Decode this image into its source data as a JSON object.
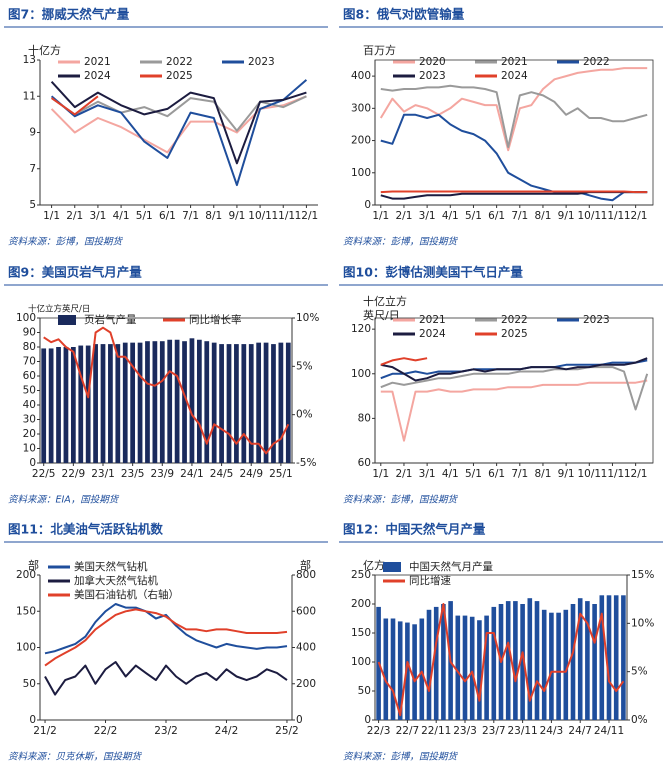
{
  "chart_data": [
    {
      "type": "line",
      "title": "图7：挪威天然气产量",
      "source": "资料来源：彭博，国投期货",
      "ylabel": "十亿方",
      "categories": [
        "1/1",
        "2/1",
        "3/1",
        "4/1",
        "5/1",
        "6/1",
        "7/1",
        "8/1",
        "9/1",
        "10/1",
        "11/1",
        "12/1"
      ],
      "ylim": [
        5,
        13
      ],
      "yticks": [
        5,
        7,
        9,
        11,
        13
      ],
      "legend_cols": 3,
      "frame": false,
      "series": [
        {
          "name": "2021",
          "color": "#f4a6a0",
          "values": [
            10.3,
            9.0,
            9.8,
            9.3,
            8.6,
            7.9,
            9.6,
            9.6,
            9.0,
            10.3,
            10.5,
            11.0
          ]
        },
        {
          "name": "2022",
          "color": "#9a9a9a",
          "values": [
            10.9,
            10.0,
            10.7,
            10.1,
            10.4,
            9.9,
            10.9,
            10.7,
            9.1,
            10.7,
            10.4,
            11.0
          ]
        },
        {
          "name": "2023",
          "color": "#1f4e9c",
          "values": [
            11.0,
            9.9,
            10.5,
            10.1,
            8.5,
            7.6,
            10.1,
            9.8,
            6.1,
            10.3,
            10.8,
            11.9
          ]
        },
        {
          "name": "2024",
          "color": "#1c1c40",
          "values": [
            11.8,
            10.4,
            11.2,
            10.5,
            10.0,
            10.3,
            11.2,
            10.9,
            7.3,
            10.7,
            10.8,
            11.2
          ]
        },
        {
          "name": "2025",
          "color": "#e0402a",
          "values": [
            10.9,
            10.0,
            11.0,
            null,
            null,
            null,
            null,
            null,
            null,
            null,
            null,
            null
          ]
        }
      ]
    },
    {
      "type": "line",
      "title": "图8：俄气对欧管输量",
      "source": "资料来源：彭博，国投期货",
      "ylabel": "百万方",
      "categories": [
        "1/1",
        null,
        "2/1",
        null,
        "3/1",
        null,
        "4/1",
        null,
        "5/1",
        null,
        "6/1",
        null,
        "7/1",
        null,
        "8/1",
        null,
        "9/1",
        null,
        "10/1",
        null,
        "11/1",
        null,
        "12/1",
        null
      ],
      "ylim": [
        0,
        450
      ],
      "yticks": [
        0,
        100,
        200,
        300,
        400
      ],
      "legend_cols": 3,
      "frame": true,
      "series": [
        {
          "name": "2020",
          "color": "#f4a6a0",
          "values": [
            270,
            330,
            290,
            310,
            300,
            280,
            300,
            330,
            320,
            310,
            310,
            170,
            300,
            310,
            360,
            390,
            400,
            410,
            415,
            420,
            420,
            425,
            425,
            425
          ]
        },
        {
          "name": "2021",
          "color": "#9a9a9a",
          "values": [
            360,
            355,
            360,
            360,
            365,
            365,
            370,
            365,
            365,
            360,
            350,
            180,
            340,
            350,
            340,
            320,
            280,
            300,
            270,
            270,
            260,
            260,
            270,
            280
          ]
        },
        {
          "name": "2022",
          "color": "#1f4e9c",
          "values": [
            200,
            190,
            280,
            280,
            270,
            280,
            250,
            230,
            220,
            200,
            160,
            100,
            80,
            60,
            50,
            40,
            40,
            40,
            30,
            20,
            15,
            40,
            40,
            40
          ]
        },
        {
          "name": "2023",
          "color": "#1c1c40",
          "values": [
            30,
            20,
            20,
            25,
            30,
            30,
            30,
            35,
            35,
            35,
            35,
            35,
            35,
            35,
            35,
            35,
            35,
            35,
            40,
            40,
            40,
            40,
            40,
            40
          ]
        },
        {
          "name": "2024",
          "color": "#e0402a",
          "values": [
            40,
            42,
            42,
            42,
            42,
            42,
            42,
            42,
            42,
            42,
            42,
            42,
            42,
            42,
            42,
            42,
            42,
            42,
            42,
            42,
            42,
            42,
            40,
            40
          ]
        }
      ]
    },
    {
      "type": "combo",
      "title": "图9：美国页岩气月产量",
      "source": "资料来源：EIA，国投期货",
      "ylabel": "十亿立方英尺/日",
      "categories": [
        "22/5",
        null,
        null,
        null,
        "22/9",
        null,
        null,
        null,
        "23/1",
        null,
        null,
        null,
        "23/5",
        null,
        null,
        null,
        "23/9",
        null,
        null,
        null,
        "24/1",
        null,
        null,
        null,
        "24/5",
        null,
        null,
        null,
        "24/9",
        null,
        null,
        null,
        "25/1",
        null
      ],
      "ylim": [
        0,
        100
      ],
      "yticks": [
        0,
        10,
        20,
        30,
        40,
        50,
        60,
        70,
        80,
        90,
        100
      ],
      "y2lim": [
        -5,
        10
      ],
      "y2ticks": [
        {
          "value": -5,
          "label": "-5%"
        },
        {
          "value": 0,
          "label": "0%"
        },
        {
          "value": 5,
          "label": "5%"
        },
        {
          "value": 10,
          "label": "10%"
        }
      ],
      "legend_cols": 2,
      "frame": true,
      "series": [
        {
          "name": "页岩气产量",
          "mark": "bar",
          "color": "#1a2a5c",
          "values": [
            79,
            79,
            80,
            80,
            80,
            81,
            81,
            82,
            82,
            82,
            82,
            83,
            83,
            83,
            84,
            84,
            84,
            85,
            85,
            84,
            86,
            85,
            84,
            83,
            82,
            82,
            82,
            82,
            82,
            83,
            83,
            82,
            83,
            83
          ]
        },
        {
          "name": "同比增长率",
          "mark": "line",
          "axis": "y2",
          "color": "#e0402a",
          "values": [
            8,
            7.5,
            7.8,
            7,
            6.5,
            4,
            1.8,
            8.5,
            9,
            8.5,
            6,
            6,
            5,
            4,
            3.2,
            3,
            3.5,
            4.5,
            4,
            2,
            0,
            -1,
            -3,
            -1,
            -1.5,
            -2,
            -3,
            -2,
            -3,
            -3,
            -4,
            -3,
            -2.5,
            -1
          ]
        }
      ]
    },
    {
      "type": "line",
      "title": "图10：彭博估测美国干气日产量",
      "source": "资料来源：彭博，国投期货",
      "ylabel": [
        "十亿立方",
        "英尺/日"
      ],
      "categories": [
        "1/1",
        null,
        "2/1",
        null,
        "3/1",
        null,
        "4/1",
        null,
        "5/1",
        null,
        "6/1",
        null,
        "7/1",
        null,
        "8/1",
        null,
        "9/1",
        null,
        "10/1",
        null,
        "11/1",
        null,
        "12/1",
        null
      ],
      "ylim": [
        60,
        125
      ],
      "yticks": [
        60,
        80,
        100,
        120
      ],
      "legend_cols": 3,
      "frame": true,
      "series": [
        {
          "name": "2021",
          "color": "#f4a6a0",
          "values": [
            92,
            92,
            70,
            92,
            92,
            93,
            92,
            92,
            93,
            93,
            93,
            94,
            94,
            94,
            95,
            95,
            95,
            95,
            96,
            96,
            96,
            96,
            96,
            97
          ]
        },
        {
          "name": "2022",
          "color": "#9a9a9a",
          "values": [
            94,
            96,
            95,
            96,
            97,
            98,
            98,
            99,
            100,
            100,
            100,
            100,
            101,
            101,
            101,
            102,
            102,
            102,
            103,
            103,
            103,
            101,
            84,
            100
          ]
        },
        {
          "name": "2023",
          "color": "#1f4e9c",
          "values": [
            98,
            100,
            100,
            101,
            100,
            101,
            101,
            101,
            102,
            102,
            102,
            102,
            102,
            103,
            103,
            103,
            104,
            104,
            104,
            104,
            105,
            105,
            105,
            106
          ]
        },
        {
          "name": "2024",
          "color": "#1c1c40",
          "values": [
            104,
            103,
            100,
            97,
            98,
            100,
            100,
            101,
            102,
            101,
            102,
            102,
            102,
            103,
            103,
            103,
            102,
            103,
            103,
            104,
            104,
            104,
            105,
            107
          ]
        },
        {
          "name": "2025",
          "color": "#e0402a",
          "values": [
            104,
            106,
            107,
            106,
            107,
            null,
            null,
            null,
            null,
            null,
            null,
            null,
            null,
            null,
            null,
            null,
            null,
            null,
            null,
            null,
            null,
            null,
            null,
            null
          ]
        }
      ]
    },
    {
      "type": "line",
      "title": "图11：北美油气活跃钻机数",
      "source": "资料来源：贝克休斯，国投期货",
      "ylabel": "部",
      "y2label": "部",
      "categories": [
        "21/2",
        null,
        null,
        null,
        null,
        null,
        "22/2",
        null,
        null,
        null,
        null,
        null,
        "23/2",
        null,
        null,
        null,
        null,
        null,
        "24/2",
        null,
        null,
        null,
        null,
        null,
        "25/2"
      ],
      "ylim": [
        0,
        200
      ],
      "yticks": [
        0,
        50,
        100,
        150,
        200
      ],
      "y2lim": [
        0,
        800
      ],
      "y2ticks": [
        0,
        200,
        400,
        600,
        800
      ],
      "legend_cols": 1,
      "frame": false,
      "series": [
        {
          "name": "美国天然气钻机",
          "color": "#1f4e9c",
          "values": [
            92,
            95,
            100,
            105,
            115,
            135,
            150,
            160,
            155,
            155,
            150,
            140,
            145,
            130,
            118,
            110,
            105,
            100,
            105,
            102,
            100,
            98,
            100,
            100,
            102
          ]
        },
        {
          "name": "加拿大天然气钻机",
          "color": "#1c1c40",
          "values": [
            60,
            35,
            55,
            60,
            75,
            50,
            70,
            80,
            60,
            75,
            65,
            55,
            75,
            60,
            50,
            60,
            65,
            55,
            70,
            60,
            55,
            60,
            70,
            65,
            55
          ]
        },
        {
          "name": "美国石油钻机（右轴）",
          "axis": "y2",
          "color": "#e0402a",
          "values": [
            300,
            340,
            370,
            400,
            440,
            500,
            540,
            580,
            600,
            610,
            600,
            590,
            570,
            530,
            500,
            500,
            490,
            500,
            500,
            490,
            480,
            480,
            480,
            480,
            486
          ]
        }
      ]
    },
    {
      "type": "combo",
      "title": "图12：中国天然气月产量",
      "source": "资料来源：彭博，国投期货",
      "ylabel": "亿方",
      "categories": [
        "22/3",
        null,
        null,
        null,
        "22/7",
        null,
        null,
        null,
        "22/11",
        null,
        null,
        null,
        "23/3",
        null,
        null,
        null,
        "23/7",
        null,
        null,
        null,
        "23/11",
        null,
        null,
        null,
        "24/3",
        null,
        null,
        null,
        "24/7",
        null,
        null,
        null,
        "24/11",
        null,
        null
      ],
      "ylim": [
        0,
        250
      ],
      "yticks": [
        0,
        50,
        100,
        150,
        200,
        250
      ],
      "y2lim": [
        0,
        15
      ],
      "y2ticks": [
        {
          "value": 0,
          "label": "0%"
        },
        {
          "value": 5,
          "label": "5%"
        },
        {
          "value": 10,
          "label": "10%"
        },
        {
          "value": 15,
          "label": "15%"
        }
      ],
      "legend_cols": 1,
      "frame": true,
      "series": [
        {
          "name": "中国天然气月产量",
          "mark": "bar",
          "color": "#1f4e9c",
          "values": [
            195,
            175,
            175,
            170,
            168,
            165,
            175,
            190,
            195,
            200,
            205,
            180,
            180,
            178,
            172,
            180,
            195,
            200,
            205,
            205,
            200,
            210,
            205,
            190,
            185,
            185,
            190,
            200,
            210,
            205,
            200,
            215,
            215,
            215,
            215
          ]
        },
        {
          "name": "同比增速",
          "mark": "line",
          "axis": "y2",
          "color": "#e0402a",
          "values": [
            6,
            4,
            3,
            0.5,
            6,
            4,
            5,
            3,
            8,
            12,
            6,
            5,
            4,
            5,
            2,
            9,
            9,
            6,
            8,
            4,
            7,
            2,
            4,
            3,
            5,
            5,
            5,
            7,
            11,
            10,
            8,
            11,
            4,
            3,
            4
          ]
        }
      ]
    }
  ]
}
